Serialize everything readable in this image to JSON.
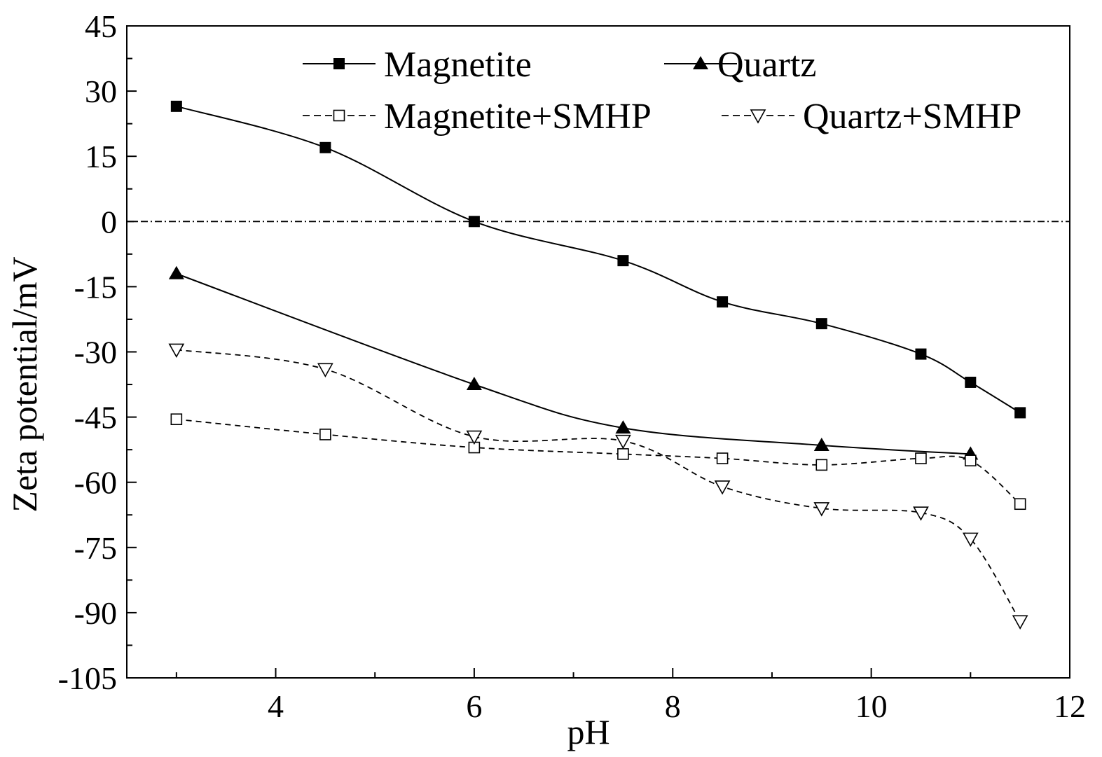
{
  "chart_data": {
    "type": "line",
    "title": "",
    "xlabel": "pH",
    "ylabel": "Zeta potential/mV",
    "xlim": [
      2.5,
      12
    ],
    "ylim": [
      -105,
      45
    ],
    "xticks": [
      4,
      6,
      8,
      10,
      12
    ],
    "yticks": [
      45,
      30,
      15,
      0,
      -15,
      -30,
      -45,
      -60,
      -75,
      -90,
      -105
    ],
    "grid": false,
    "legend_position": "top",
    "reference_line": {
      "y": 0,
      "style": "dash-dot"
    },
    "series": [
      {
        "name": "Magnetite",
        "line": "solid",
        "marker": "filled-square",
        "x": [
          3,
          4.5,
          6,
          7.5,
          8.5,
          9.5,
          10.5,
          11,
          11.5
        ],
        "y": [
          26.5,
          17,
          0,
          -9,
          -18.5,
          -23.5,
          -30.5,
          -37,
          -44
        ]
      },
      {
        "name": "Quartz",
        "line": "solid",
        "marker": "filled-triangle",
        "x": [
          3,
          6,
          7.5,
          9.5,
          11
        ],
        "y": [
          -12,
          -37.5,
          -47.5,
          -51.5,
          -53.5
        ]
      },
      {
        "name": "Magnetite+SMHP",
        "line": "dashed",
        "marker": "open-square",
        "x": [
          3,
          4.5,
          6,
          7.5,
          8.5,
          9.5,
          10.5,
          11,
          11.5
        ],
        "y": [
          -45.5,
          -49,
          -52,
          -53.5,
          -54.5,
          -56,
          -54.5,
          -55,
          -65
        ]
      },
      {
        "name": "Quartz+SMHP",
        "line": "dashed",
        "marker": "open-triangle-down",
        "x": [
          3,
          4.5,
          6,
          7.5,
          8.5,
          9.5,
          10.5,
          11,
          11.5
        ],
        "y": [
          -29.5,
          -34,
          -49.5,
          -50.5,
          -61,
          -66,
          -67,
          -73,
          -92
        ]
      }
    ]
  }
}
